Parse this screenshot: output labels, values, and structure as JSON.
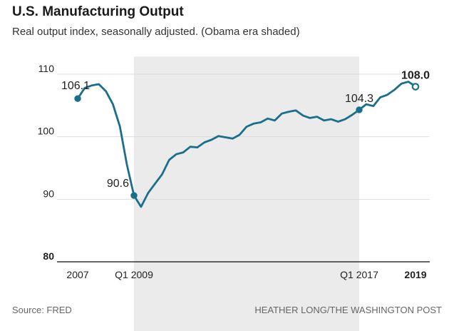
{
  "header": {
    "title": "U.S. Manufacturing Output",
    "subtitle": "Real output index, seasonally adjusted. (Obama era shaded)"
  },
  "footer": {
    "source": "Source: FRED",
    "credit": "HEATHER LONG/THE WASHINGTON POST"
  },
  "colors": {
    "line": "#1a6f8a",
    "shade": "#ebebeb",
    "text": "#222222",
    "grid": "#dddddd"
  },
  "chart_data": {
    "type": "line",
    "title": "U.S. Manufacturing Output",
    "subtitle": "Real output index, seasonally adjusted. (Obama era shaded)",
    "ylim": [
      80,
      111
    ],
    "yticks": [
      80,
      90,
      100,
      110
    ],
    "ytick_labels": [
      "80",
      "90",
      "100",
      "110"
    ],
    "xlim": [
      2007.0,
      2019.25
    ],
    "xticks": [
      {
        "x": 2007.0,
        "label": "2007",
        "bold": false
      },
      {
        "x": 2009.0,
        "label": "Q1 2009",
        "bold": false
      },
      {
        "x": 2017.0,
        "label": "Q1 2017",
        "bold": false
      },
      {
        "x": 2019.0,
        "label": "2019",
        "bold": true
      }
    ],
    "shaded_region": {
      "from": 2009.0,
      "to": 2017.0,
      "label": "Obama era"
    },
    "series": [
      {
        "x": [
          2007.0,
          2007.25,
          2007.5,
          2007.75,
          2008.0,
          2008.25,
          2008.5,
          2008.75,
          2009.0,
          2009.25,
          2009.5,
          2009.75,
          2010.0,
          2010.25,
          2010.5,
          2010.75,
          2011.0,
          2011.25,
          2011.5,
          2011.75,
          2012.0,
          2012.25,
          2012.5,
          2012.75,
          2013.0,
          2013.25,
          2013.5,
          2013.75,
          2014.0,
          2014.25,
          2014.5,
          2014.75,
          2015.0,
          2015.25,
          2015.5,
          2015.75,
          2016.0,
          2016.25,
          2016.5,
          2016.75,
          2017.0,
          2017.25,
          2017.5,
          2017.75,
          2018.0,
          2018.25,
          2018.5,
          2018.75,
          2019.0
        ],
        "values": [
          106.1,
          107.8,
          108.2,
          108.4,
          107.3,
          105.2,
          101.6,
          95.5,
          90.6,
          88.8,
          91.0,
          92.5,
          94.0,
          96.3,
          97.2,
          97.5,
          98.4,
          98.3,
          99.1,
          99.5,
          100.1,
          99.9,
          99.7,
          100.3,
          101.6,
          102.1,
          102.3,
          102.9,
          102.6,
          103.7,
          104.0,
          104.2,
          103.4,
          103.0,
          103.2,
          102.6,
          102.8,
          102.4,
          102.8,
          103.5,
          104.3,
          105.2,
          104.9,
          106.3,
          106.7,
          107.5,
          108.5,
          108.8,
          108.0
        ],
        "labeled_points": [
          {
            "x": 2007.0,
            "y": 106.1,
            "label": "106.1",
            "bold": false,
            "hollow": false,
            "side": "left"
          },
          {
            "x": 2009.0,
            "y": 90.6,
            "label": "90.6",
            "bold": false,
            "hollow": false,
            "side": "left"
          },
          {
            "x": 2017.0,
            "y": 104.3,
            "label": "104.3",
            "bold": false,
            "hollow": false,
            "side": "above"
          },
          {
            "x": 2019.0,
            "y": 108.0,
            "label": "108.0",
            "bold": true,
            "hollow": true,
            "side": "above"
          }
        ]
      }
    ]
  }
}
